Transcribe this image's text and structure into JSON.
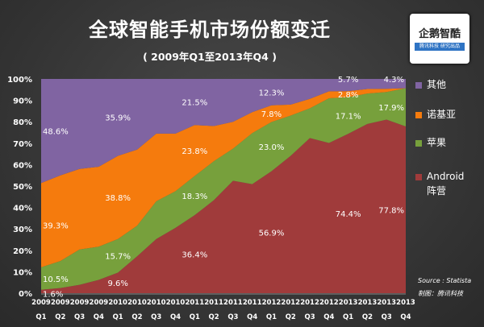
{
  "chart_data": {
    "type": "area",
    "stacked": true,
    "title": "全球智能手机市场份额变迁",
    "subtitle": "( 2009年Q1至2013年Q4 )",
    "xlabel": "",
    "ylabel": "",
    "ylim": [
      0,
      100
    ],
    "yticks": [
      "0%",
      "10%",
      "20%",
      "30%",
      "40%",
      "50%",
      "60%",
      "70%",
      "80%",
      "90%",
      "100%"
    ],
    "categories_year": [
      "2009",
      "2009",
      "2009",
      "2009",
      "2010",
      "2010",
      "2010",
      "2010",
      "2011",
      "2011",
      "2011",
      "2011",
      "2012",
      "2012",
      "2012",
      "2012",
      "2013",
      "2013",
      "2013",
      "2013"
    ],
    "categories_quarter": [
      "Q1",
      "Q2",
      "Q3",
      "Q4",
      "Q1",
      "Q2",
      "Q3",
      "Q4",
      "Q1",
      "Q2",
      "Q3",
      "Q4",
      "Q1",
      "Q2",
      "Q3",
      "Q4",
      "Q1",
      "Q2",
      "Q3",
      "Q4"
    ],
    "series": [
      {
        "name": "Android阵营",
        "legend": [
          "Android",
          "阵营"
        ],
        "color": "#a03b3b",
        "values": [
          1.6,
          2.4,
          3.9,
          6.2,
          9.6,
          17.2,
          25.3,
          30.5,
          36.4,
          43.4,
          52.5,
          50.9,
          56.9,
          64.1,
          72.4,
          70.1,
          74.4,
          79.0,
          81.0,
          77.8
        ]
      },
      {
        "name": "苹果",
        "legend": [
          "苹果"
        ],
        "color": "#77a03c",
        "values": [
          10.5,
          12.6,
          16.5,
          15.5,
          15.7,
          14.3,
          17.6,
          17.1,
          18.3,
          18.2,
          15.0,
          23.8,
          23.0,
          18.8,
          13.9,
          20.9,
          17.1,
          14.2,
          12.9,
          17.9
        ]
      },
      {
        "name": "诺基亚",
        "legend": [
          "诺基亚"
        ],
        "color": "#f57b0d",
        "values": [
          39.3,
          40.0,
          37.6,
          37.3,
          38.8,
          35.5,
          31.6,
          26.9,
          23.8,
          16.4,
          12.5,
          9.8,
          7.8,
          5.1,
          4.4,
          3.2,
          2.8,
          2.1,
          1.5,
          0.0
        ]
      },
      {
        "name": "其他",
        "legend": [
          "其他"
        ],
        "color": "#8064a2",
        "values": [
          48.6,
          45.0,
          42.0,
          41.0,
          35.9,
          33.0,
          25.5,
          25.5,
          21.5,
          22.0,
          20.0,
          15.5,
          12.3,
          12.0,
          9.3,
          5.8,
          5.7,
          4.7,
          4.6,
          4.3
        ]
      }
    ],
    "data_labels": [
      {
        "series": 0,
        "index": 0,
        "text": "1.6%"
      },
      {
        "series": 1,
        "index": 0,
        "text": "10.5%"
      },
      {
        "series": 2,
        "index": 0,
        "text": "39.3%"
      },
      {
        "series": 3,
        "index": 0,
        "text": "48.6%"
      },
      {
        "series": 0,
        "index": 4,
        "text": "9.6%"
      },
      {
        "series": 1,
        "index": 4,
        "text": "15.7%"
      },
      {
        "series": 2,
        "index": 4,
        "text": "38.8%"
      },
      {
        "series": 3,
        "index": 4,
        "text": "35.9%"
      },
      {
        "series": 0,
        "index": 8,
        "text": "36.4%"
      },
      {
        "series": 1,
        "index": 8,
        "text": "18.3%"
      },
      {
        "series": 2,
        "index": 8,
        "text": "23.8%"
      },
      {
        "series": 3,
        "index": 8,
        "text": "21.5%"
      },
      {
        "series": 0,
        "index": 12,
        "text": "56.9%"
      },
      {
        "series": 1,
        "index": 12,
        "text": "23.0%"
      },
      {
        "series": 2,
        "index": 12,
        "text": "7.8%"
      },
      {
        "series": 3,
        "index": 12,
        "text": "12.3%"
      },
      {
        "series": 0,
        "index": 16,
        "text": "74.4%"
      },
      {
        "series": 1,
        "index": 16,
        "text": "17.1%"
      },
      {
        "series": 2,
        "index": 16,
        "text": "2.8%"
      },
      {
        "series": 3,
        "index": 16,
        "text": "5.7%"
      },
      {
        "series": 0,
        "index": 19,
        "text": "77.8%"
      },
      {
        "series": 1,
        "index": 19,
        "text": "17.9%"
      },
      {
        "series": 3,
        "index": 19,
        "text": "4.3%"
      }
    ],
    "legend_position": "right",
    "grid": false
  },
  "logo": {
    "name": "企鹅智酷",
    "tagline": "腾讯科技 研究出品"
  },
  "source": {
    "line1": "Source : Statista",
    "line2": "制图：腾讯科技"
  }
}
